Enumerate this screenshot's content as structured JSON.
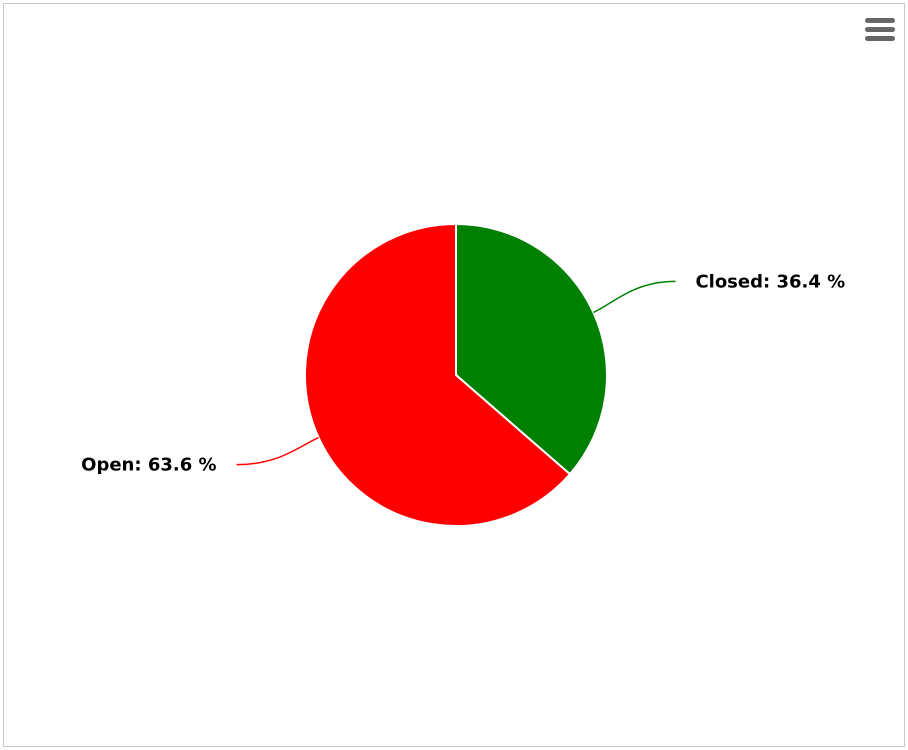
{
  "chart_data": {
    "type": "pie",
    "title": "",
    "slices": [
      {
        "name": "Closed",
        "value": 36.4,
        "color": "#008000",
        "label": "Closed: 36.4 %"
      },
      {
        "name": "Open",
        "value": 63.6,
        "color": "#ff0000",
        "label": "Open: 63.6 %"
      }
    ],
    "start_angle": "12 o'clock, clockwise",
    "slice_border_color": "#ffffff",
    "legend": "none"
  },
  "toolbar": {
    "menu_icon": "hamburger-menu-icon"
  }
}
